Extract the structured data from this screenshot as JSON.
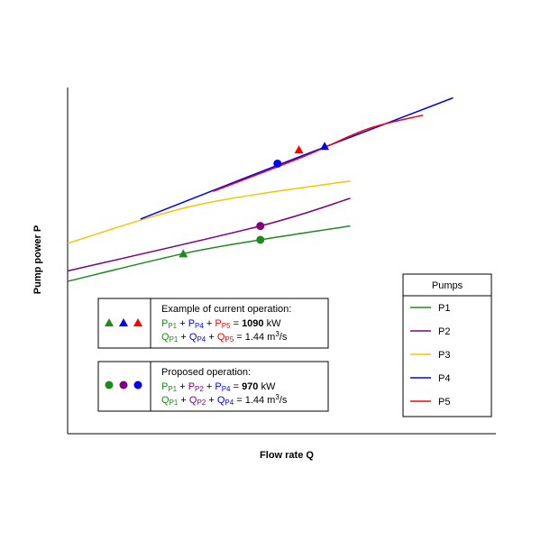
{
  "chart_data": {
    "type": "line",
    "xlabel": "Flow rate Q",
    "ylabel": "Pump power P",
    "grid": false,
    "legend_placement": "bottom-right",
    "xlim": [
      0,
      1
    ],
    "ylim": [
      0,
      1
    ],
    "series": [
      {
        "name": "P1",
        "color": "#1e8a1e",
        "x": [
          0.0,
          0.27,
          0.45,
          0.66
        ],
        "y": [
          0.44,
          0.52,
          0.56,
          0.6
        ]
      },
      {
        "name": "P2",
        "color": "#800080",
        "x": [
          0.0,
          0.45,
          0.66
        ],
        "y": [
          0.47,
          0.6,
          0.68
        ]
      },
      {
        "name": "P3",
        "color": "#f5c400",
        "x": [
          0.0,
          0.3,
          0.66
        ],
        "y": [
          0.55,
          0.66,
          0.73
        ]
      },
      {
        "name": "P4",
        "color": "#0000ff",
        "x": [
          0.17,
          0.5,
          0.9
        ],
        "y": [
          0.62,
          0.78,
          0.97
        ]
      },
      {
        "name": "P5",
        "color": "#ff0000",
        "x": [
          0.34,
          0.55,
          0.7,
          0.83
        ],
        "y": [
          0.7,
          0.8,
          0.88,
          0.92
        ]
      }
    ],
    "current_operation_points": [
      {
        "series": "P1",
        "x": 0.27,
        "y": 0.52
      },
      {
        "series": "P4",
        "x": 0.6,
        "y": 0.83
      },
      {
        "series": "P5",
        "x": 0.54,
        "y": 0.82
      }
    ],
    "proposed_operation_points": [
      {
        "series": "P1",
        "x": 0.45,
        "y": 0.56
      },
      {
        "series": "P2",
        "x": 0.45,
        "y": 0.6
      },
      {
        "series": "P4",
        "x": 0.49,
        "y": 0.78
      }
    ]
  },
  "current_box": {
    "title": "Example of current operation:",
    "line1": {
      "P": "P",
      "sub1": "P1",
      "plus": " + ",
      "sub2": "P4",
      "sub3": "P5",
      "eq": " = ",
      "value": "1090",
      "unit": " kW"
    },
    "line2": {
      "Q": "Q",
      "sub1": "P1",
      "plus": " + ",
      "sub2": "P4",
      "sub3": "P5",
      "eq": " = 1.44 m",
      "exp": "3",
      "tail": "/s"
    }
  },
  "proposed_box": {
    "title": "Proposed operation:",
    "line1": {
      "P": "P",
      "sub1": "P1",
      "plus": " + ",
      "sub2": "P2",
      "sub3": "P4",
      "eq": " = ",
      "value": "970",
      "unit": " kW"
    },
    "line2": {
      "Q": "Q",
      "sub1": "P1",
      "plus": " + ",
      "sub2": "P2",
      "sub3": "P4",
      "eq": " = 1.44 m",
      "exp": "3",
      "tail": "/s"
    }
  },
  "legend": {
    "title": "Pumps",
    "items": [
      {
        "label": "P1",
        "color": "#1e8a1e"
      },
      {
        "label": "P2",
        "color": "#800080"
      },
      {
        "label": "P3",
        "color": "#f5c400"
      },
      {
        "label": "P4",
        "color": "#0000ff"
      },
      {
        "label": "P5",
        "color": "#ff0000"
      }
    ]
  },
  "colors": {
    "p1": "#1e8a1e",
    "p2": "#800080",
    "p4": "#0000ff",
    "p5": "#ff0000",
    "axis": "#000000"
  }
}
